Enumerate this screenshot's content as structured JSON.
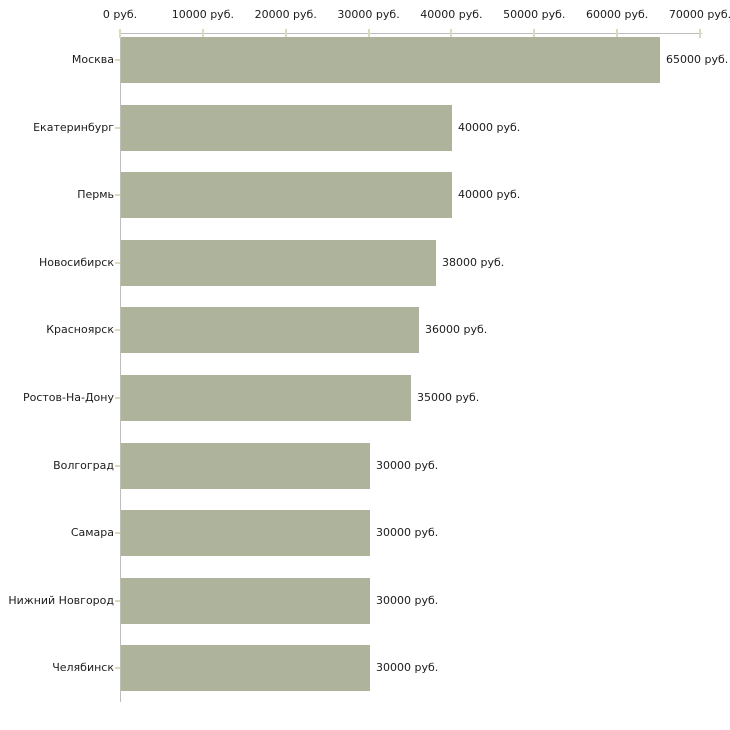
{
  "chart_data": {
    "type": "bar",
    "orientation": "horizontal",
    "title": "",
    "categories": [
      "Москва",
      "Екатеринбург",
      "Пермь",
      "Новосибирск",
      "Красноярск",
      "Ростов-На-Дону",
      "Волгоград",
      "Самара",
      "Нижний Новгород",
      "Челябинск"
    ],
    "values": [
      65000,
      40000,
      40000,
      38000,
      36000,
      35000,
      30000,
      30000,
      30000,
      30000
    ],
    "value_labels": [
      "65000 руб.",
      "40000 руб.",
      "40000 руб.",
      "38000 руб.",
      "36000 руб.",
      "35000 руб.",
      "30000 руб.",
      "30000 руб.",
      "30000 руб.",
      "30000 руб."
    ],
    "x_axis": {
      "position": "top",
      "min": 0,
      "max": 70000,
      "tick_values": [
        0,
        10000,
        20000,
        30000,
        40000,
        50000,
        60000,
        70000
      ],
      "tick_labels": [
        "0 руб.",
        "10000 руб.",
        "20000 руб.",
        "30000 руб.",
        "40000 руб.",
        "50000 руб.",
        "60000 руб.",
        "70000 руб."
      ]
    },
    "legend": null,
    "grid": false,
    "colors": {
      "bar": "#aeb49c",
      "axis_line": "#bdbdbd",
      "tick_mark": "#d8dbbc",
      "text": "#1c1c1c",
      "background": "#ffffff"
    }
  }
}
